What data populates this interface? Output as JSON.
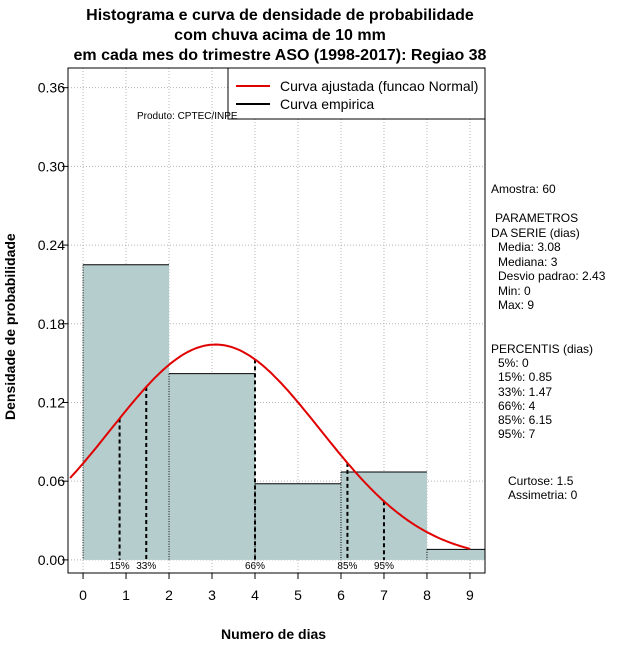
{
  "chart_data": {
    "type": "histogram",
    "title": [
      "Histograma e curva de densidade de probabilidade",
      "com chuva acima de 10 mm",
      "em cada mes do trimestre ASO (1998-2017): Regiao 38"
    ],
    "xlabel": "Numero de dias",
    "ylabel": "Densidade de probabilidade",
    "xlim": [
      -0.35,
      9.35
    ],
    "ylim": [
      -0.01,
      0.375
    ],
    "x_ticks": [
      0,
      1,
      2,
      3,
      4,
      5,
      6,
      7,
      8,
      9
    ],
    "y_ticks": [
      0.0,
      0.06,
      0.12,
      0.18,
      0.24,
      0.3,
      0.36
    ],
    "y_tick_labels": [
      "0.00",
      "0.06",
      "0.12",
      "0.18",
      "0.24",
      "0.30",
      "0.36"
    ],
    "bins": [
      {
        "x0": 0,
        "x1": 2,
        "density": 0.225
      },
      {
        "x0": 2,
        "x1": 4,
        "density": 0.142
      },
      {
        "x0": 4,
        "x1": 6,
        "density": 0.058
      },
      {
        "x0": 6,
        "x1": 8,
        "density": 0.067
      },
      {
        "x0": 8,
        "x1": 10,
        "density": 0.008
      }
    ],
    "fitted_curve": {
      "distribution": "normal",
      "mean": 3.08,
      "sd": 2.43,
      "x_range": [
        -0.3,
        9.0
      ]
    },
    "percentile_lines": [
      {
        "label": "15%",
        "x": 0.85
      },
      {
        "label": "33%",
        "x": 1.47
      },
      {
        "label": "66%",
        "x": 4
      },
      {
        "label": "85%",
        "x": 6.15
      },
      {
        "label": "95%",
        "x": 7
      }
    ],
    "legend": [
      {
        "label": "Curva ajustada (funcao Normal)",
        "color": "#e00000"
      },
      {
        "label": "Curva empirica",
        "color": "#000000"
      }
    ]
  },
  "credit": "Produto: CPTEC/INPE",
  "stats": {
    "sample": "Amostra: 60",
    "params_header_1": "PARAMETROS",
    "params_header_2": "DA SERIE (dias)",
    "media": "Media: 3.08",
    "mediana": "Mediana: 3",
    "desvio": "Desvio padrao: 2.43",
    "min": "Min: 0",
    "max": "Max: 9",
    "percentis_header": "PERCENTIS (dias)",
    "p5": "5%: 0",
    "p15": "15%: 0.85",
    "p33": "33%: 1.47",
    "p66": "66%: 4",
    "p85": "85%: 6.15",
    "p95": "95%: 7",
    "curtose": "Curtose: 1.5",
    "assimetria": "Assimetria: 0"
  },
  "colors": {
    "bar_fill": "#b5cdcc",
    "curve": "#e00000",
    "grid": "#b4b4b4"
  }
}
